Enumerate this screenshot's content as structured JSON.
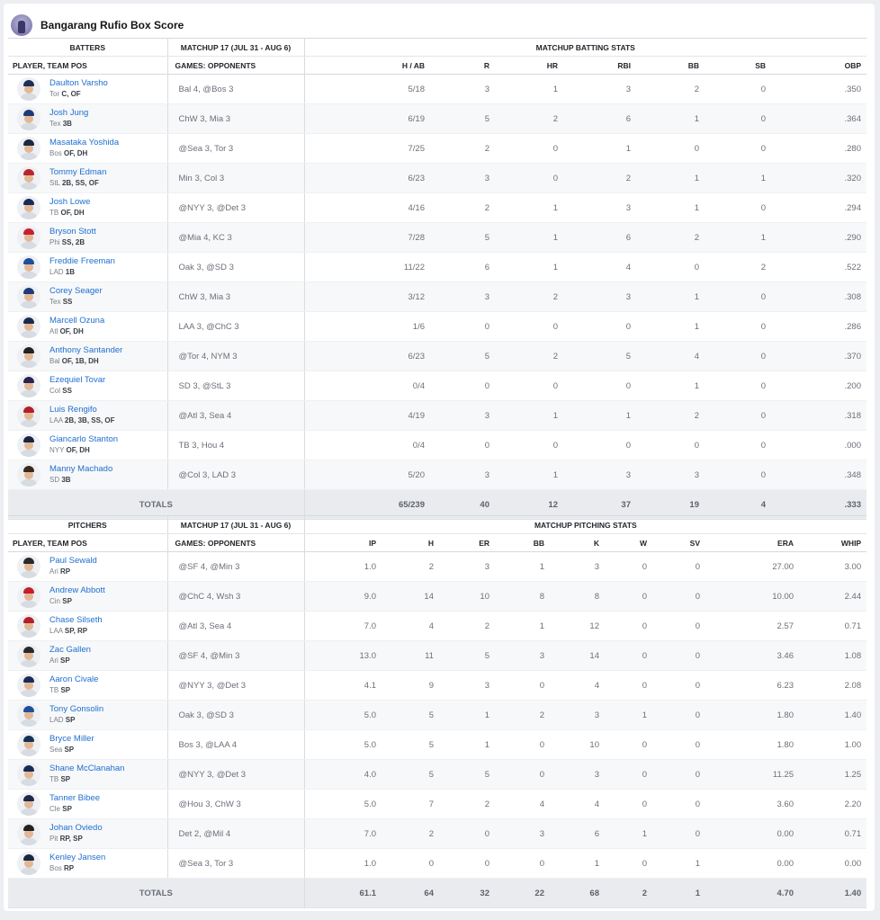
{
  "title": "Bangarang Rufio Box Score",
  "batting": {
    "group_headers": {
      "players": "BATTERS",
      "matchup": "MATCHUP 17 (JUL 31 - AUG 6)",
      "stats": "MATCHUP BATTING STATS"
    },
    "col_headers": {
      "player": "PLAYER, TEAM POS",
      "games": "GAMES: OPPONENTS",
      "stats": [
        "H / AB",
        "R",
        "HR",
        "RBI",
        "BB",
        "SB",
        "OBP"
      ]
    },
    "rows": [
      {
        "name": "Daulton Varsho",
        "team": "Tor",
        "pos": "C, OF",
        "games": "Bal 4, @Bos 3",
        "stats": [
          "5/18",
          "3",
          "1",
          "3",
          "2",
          "0",
          ".350"
        ],
        "cap": "#1d2e5a"
      },
      {
        "name": "Josh Jung",
        "team": "Tex",
        "pos": "3B",
        "games": "ChW 3, Mia 3",
        "stats": [
          "6/19",
          "5",
          "2",
          "6",
          "1",
          "0",
          ".364"
        ],
        "cap": "#1e3a7a"
      },
      {
        "name": "Masataka Yoshida",
        "team": "Bos",
        "pos": "OF, DH",
        "games": "@Sea 3, Tor 3",
        "stats": [
          "7/25",
          "2",
          "0",
          "1",
          "0",
          "0",
          ".280"
        ],
        "cap": "#1c2744"
      },
      {
        "name": "Tommy Edman",
        "team": "StL",
        "pos": "2B, SS, OF",
        "games": "Min 3, Col 3",
        "stats": [
          "6/23",
          "3",
          "0",
          "2",
          "1",
          "1",
          ".320"
        ],
        "cap": "#b8262d"
      },
      {
        "name": "Josh Lowe",
        "team": "TB",
        "pos": "OF, DH",
        "games": "@NYY 3, @Det 3",
        "stats": [
          "4/16",
          "2",
          "1",
          "3",
          "1",
          "0",
          ".294"
        ],
        "cap": "#1a2b57"
      },
      {
        "name": "Bryson Stott",
        "team": "Phi",
        "pos": "SS, 2B",
        "games": "@Mia 4, KC 3",
        "stats": [
          "7/28",
          "5",
          "1",
          "6",
          "2",
          "1",
          ".290"
        ],
        "cap": "#c8202f"
      },
      {
        "name": "Freddie Freeman",
        "team": "LAD",
        "pos": "1B",
        "games": "Oak 3, @SD 3",
        "stats": [
          "11/22",
          "6",
          "1",
          "4",
          "0",
          "2",
          ".522"
        ],
        "cap": "#1e4f9c"
      },
      {
        "name": "Corey Seager",
        "team": "Tex",
        "pos": "SS",
        "games": "ChW 3, Mia 3",
        "stats": [
          "3/12",
          "3",
          "2",
          "3",
          "1",
          "0",
          ".308"
        ],
        "cap": "#1e3a7a"
      },
      {
        "name": "Marcell Ozuna",
        "team": "Atl",
        "pos": "OF, DH",
        "games": "LAA 3, @ChC 3",
        "stats": [
          "1/6",
          "0",
          "0",
          "0",
          "1",
          "0",
          ".286"
        ],
        "cap": "#1b2a4e"
      },
      {
        "name": "Anthony Santander",
        "team": "Bal",
        "pos": "OF, 1B, DH",
        "games": "@Tor 4, NYM 3",
        "stats": [
          "6/23",
          "5",
          "2",
          "5",
          "4",
          "0",
          ".370"
        ],
        "cap": "#222222"
      },
      {
        "name": "Ezequiel Tovar",
        "team": "Col",
        "pos": "SS",
        "games": "SD 3, @StL 3",
        "stats": [
          "0/4",
          "0",
          "0",
          "0",
          "1",
          "0",
          ".200"
        ],
        "cap": "#2b2250"
      },
      {
        "name": "Luis Rengifo",
        "team": "LAA",
        "pos": "2B, 3B, SS, OF",
        "games": "@Atl 3, Sea 4",
        "stats": [
          "4/19",
          "3",
          "1",
          "1",
          "2",
          "0",
          ".318"
        ],
        "cap": "#b3202a"
      },
      {
        "name": "Giancarlo Stanton",
        "team": "NYY",
        "pos": "OF, DH",
        "games": "TB 3, Hou 4",
        "stats": [
          "0/4",
          "0",
          "0",
          "0",
          "0",
          "0",
          ".000"
        ],
        "cap": "#1a2440"
      },
      {
        "name": "Manny Machado",
        "team": "SD",
        "pos": "3B",
        "games": "@Col 3, LAD 3",
        "stats": [
          "5/20",
          "3",
          "1",
          "3",
          "3",
          "0",
          ".348"
        ],
        "cap": "#3a2a1e"
      }
    ],
    "totals": {
      "label": "TOTALS",
      "stats": [
        "65/239",
        "40",
        "12",
        "37",
        "19",
        "4",
        ".333"
      ]
    }
  },
  "pitching": {
    "group_headers": {
      "players": "PITCHERS",
      "matchup": "MATCHUP 17 (JUL 31 - AUG 6)",
      "stats": "MATCHUP PITCHING STATS"
    },
    "col_headers": {
      "player": "PLAYER, TEAM POS",
      "games": "GAMES: OPPONENTS",
      "stats": [
        "IP",
        "H",
        "ER",
        "BB",
        "K",
        "W",
        "SV",
        "ERA",
        "WHIP"
      ]
    },
    "rows": [
      {
        "name": "Paul Sewald",
        "team": "Ari",
        "pos": "RP",
        "games": "@SF 4, @Min 3",
        "stats": [
          "1.0",
          "2",
          "3",
          "1",
          "3",
          "0",
          "0",
          "27.00",
          "3.00"
        ],
        "cap": "#2a2a2a"
      },
      {
        "name": "Andrew Abbott",
        "team": "Cin",
        "pos": "SP",
        "games": "@ChC 4, Wsh 3",
        "stats": [
          "9.0",
          "14",
          "10",
          "8",
          "8",
          "0",
          "0",
          "10.00",
          "2.44"
        ],
        "cap": "#c6202b"
      },
      {
        "name": "Chase Silseth",
        "team": "LAA",
        "pos": "SP, RP",
        "games": "@Atl 3, Sea 4",
        "stats": [
          "7.0",
          "4",
          "2",
          "1",
          "12",
          "0",
          "0",
          "2.57",
          "0.71"
        ],
        "cap": "#b3202a"
      },
      {
        "name": "Zac Gallen",
        "team": "Ari",
        "pos": "SP",
        "games": "@SF 4, @Min 3",
        "stats": [
          "13.0",
          "11",
          "5",
          "3",
          "14",
          "0",
          "0",
          "3.46",
          "1.08"
        ],
        "cap": "#2a2a2a"
      },
      {
        "name": "Aaron Civale",
        "team": "TB",
        "pos": "SP",
        "games": "@NYY 3, @Det 3",
        "stats": [
          "4.1",
          "9",
          "3",
          "0",
          "4",
          "0",
          "0",
          "6.23",
          "2.08"
        ],
        "cap": "#1a2b57"
      },
      {
        "name": "Tony Gonsolin",
        "team": "LAD",
        "pos": "SP",
        "games": "Oak 3, @SD 3",
        "stats": [
          "5.0",
          "5",
          "1",
          "2",
          "3",
          "1",
          "0",
          "1.80",
          "1.40"
        ],
        "cap": "#1e4f9c"
      },
      {
        "name": "Bryce Miller",
        "team": "Sea",
        "pos": "SP",
        "games": "Bos 3, @LAA 4",
        "stats": [
          "5.0",
          "5",
          "1",
          "0",
          "10",
          "0",
          "0",
          "1.80",
          "1.00"
        ],
        "cap": "#133255"
      },
      {
        "name": "Shane McClanahan",
        "team": "TB",
        "pos": "SP",
        "games": "@NYY 3, @Det 3",
        "stats": [
          "4.0",
          "5",
          "5",
          "0",
          "3",
          "0",
          "0",
          "11.25",
          "1.25"
        ],
        "cap": "#1a2b57"
      },
      {
        "name": "Tanner Bibee",
        "team": "Cle",
        "pos": "SP",
        "games": "@Hou 3, ChW 3",
        "stats": [
          "5.0",
          "7",
          "2",
          "4",
          "4",
          "0",
          "0",
          "3.60",
          "2.20"
        ],
        "cap": "#1c2a4a"
      },
      {
        "name": "Johan Oviedo",
        "team": "Pit",
        "pos": "RP, SP",
        "games": "Det 2, @Mil 4",
        "stats": [
          "7.0",
          "2",
          "0",
          "3",
          "6",
          "1",
          "0",
          "0.00",
          "0.71"
        ],
        "cap": "#222222"
      },
      {
        "name": "Kenley Jansen",
        "team": "Bos",
        "pos": "RP",
        "games": "@Sea 3, Tor 3",
        "stats": [
          "1.0",
          "0",
          "0",
          "0",
          "1",
          "0",
          "1",
          "0.00",
          "0.00"
        ],
        "cap": "#1c2744"
      }
    ],
    "totals": {
      "label": "TOTALS",
      "stats": [
        "61.1",
        "64",
        "32",
        "22",
        "68",
        "2",
        "1",
        "4.70",
        "1.40"
      ]
    }
  }
}
